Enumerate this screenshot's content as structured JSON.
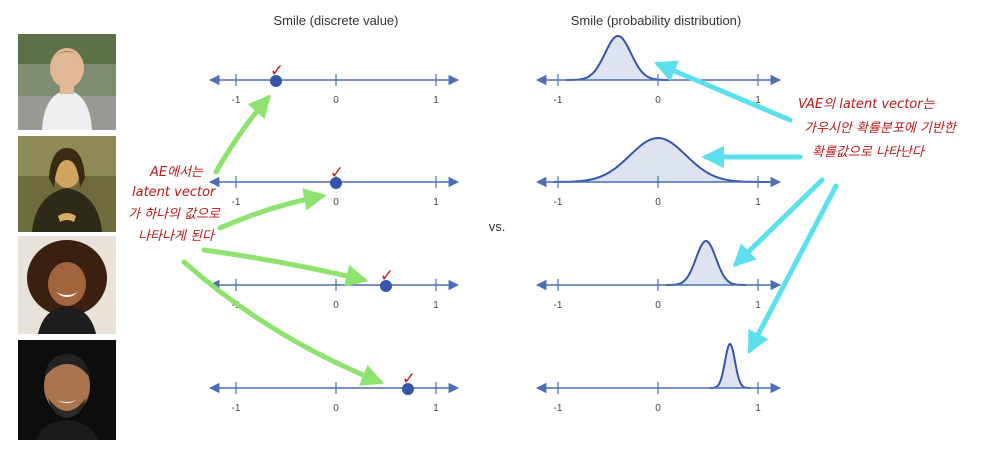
{
  "left_title": "Smile (discrete value)",
  "right_title": "Smile (probability distribution)",
  "vs_label": "vs.",
  "tick_labels": [
    "-1",
    "0",
    "1"
  ],
  "ae_note": [
    "AE에서는",
    "latent vector",
    "가 하나의 값으로",
    "나타나게 된다"
  ],
  "vae_note": [
    "VAE의 latent vector는",
    "가우시안 확률분포에 기반한",
    "확률값으로 나타난다"
  ],
  "check_mark": "✓",
  "photos": [
    {
      "subject": "boy",
      "icon": "boy-photo"
    },
    {
      "subject": "mona-lisa",
      "icon": "painting-photo"
    },
    {
      "subject": "girl",
      "icon": "girl-photo"
    },
    {
      "subject": "man",
      "icon": "man-photo"
    }
  ],
  "colors": {
    "axis": "#4a6fb5",
    "dot": "#3556a8",
    "curve_fill": "#dde3f1",
    "check": "#c81e1e",
    "green_arrow": "#8ee26e",
    "cyan_arrow": "#5de0ee",
    "note_text": "#b81818"
  },
  "chart_data": [
    {
      "type": "scatter",
      "row": 1,
      "kind": "discrete",
      "xlim": [
        -1,
        1
      ],
      "x": [
        -0.6
      ]
    },
    {
      "type": "scatter",
      "row": 2,
      "kind": "discrete",
      "xlim": [
        -1,
        1
      ],
      "x": [
        0.0
      ]
    },
    {
      "type": "scatter",
      "row": 3,
      "kind": "discrete",
      "xlim": [
        -1,
        1
      ],
      "x": [
        0.5
      ]
    },
    {
      "type": "scatter",
      "row": 4,
      "kind": "discrete",
      "xlim": [
        -1,
        1
      ],
      "x": [
        0.72
      ]
    },
    {
      "type": "area",
      "row": 1,
      "kind": "gaussian",
      "xlim": [
        -1,
        1
      ],
      "mean": -0.4,
      "sd": 0.13
    },
    {
      "type": "area",
      "row": 2,
      "kind": "gaussian",
      "xlim": [
        -1,
        1
      ],
      "mean": 0.0,
      "sd": 0.28
    },
    {
      "type": "area",
      "row": 3,
      "kind": "gaussian",
      "xlim": [
        -1,
        1
      ],
      "mean": 0.48,
      "sd": 0.1
    },
    {
      "type": "area",
      "row": 4,
      "kind": "gaussian",
      "xlim": [
        -1,
        1
      ],
      "mean": 0.72,
      "sd": 0.05
    }
  ]
}
